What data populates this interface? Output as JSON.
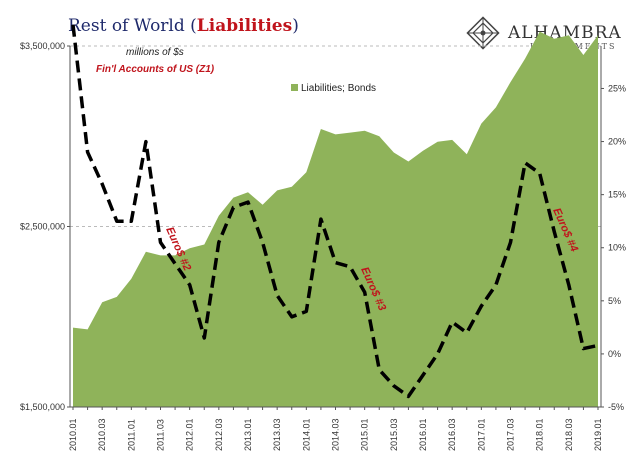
{
  "chart_data": {
    "type": "area",
    "title": {
      "prefix": "Rest of World (",
      "highlight": "Liabilities",
      "suffix": ")"
    },
    "notes": {
      "units": "millions of $s",
      "source": "Fin'l Accounts of US (Z1)"
    },
    "legend": [
      "Liabilities; Bonds"
    ],
    "legend_position": "top-left",
    "x": [
      "2010.Q1",
      "2010.Q2",
      "2010.Q3",
      "2010.Q4",
      "2011.Q1",
      "2011.Q2",
      "2011.Q3",
      "2011.Q4",
      "2012.Q1",
      "2012.Q2",
      "2012.Q3",
      "2012.Q4",
      "2013.Q1",
      "2013.Q2",
      "2013.Q3",
      "2013.Q4",
      "2014.Q1",
      "2014.Q2",
      "2014.Q3",
      "2014.Q4",
      "2015.Q1",
      "2015.Q2",
      "2015.Q3",
      "2015.Q4",
      "2016.Q1",
      "2016.Q2",
      "2016.Q3",
      "2016.Q4",
      "2017.Q1",
      "2017.Q2",
      "2017.Q3",
      "2017.Q4",
      "2018.Q1",
      "2018.Q2",
      "2018.Q3",
      "2018.Q4",
      "2019.Q1"
    ],
    "x_tick_labels": [
      "2010.01",
      "2010.03",
      "2011.01",
      "2011.03",
      "2012.01",
      "2012.03",
      "2013.01",
      "2013.03",
      "2014.01",
      "2014.03",
      "2015.01",
      "2015.03",
      "2016.01",
      "2016.03",
      "2017.01",
      "2017.03",
      "2018.01",
      "2018.03",
      "2019.01"
    ],
    "series": [
      {
        "name": "Liabilities; Bonds",
        "axis": "left",
        "color": "#8fb35a",
        "values": [
          1940000,
          1930000,
          2080000,
          2110000,
          2210000,
          2360000,
          2340000,
          2340000,
          2380000,
          2400000,
          2560000,
          2660000,
          2690000,
          2620000,
          2700000,
          2720000,
          2800000,
          3040000,
          3010000,
          3020000,
          3030000,
          3000000,
          2910000,
          2860000,
          2920000,
          2970000,
          2980000,
          2900000,
          3070000,
          3160000,
          3300000,
          3430000,
          3580000,
          3540000,
          3560000,
          3450000,
          3560000
        ]
      },
      {
        "name": "",
        "axis": "right",
        "color": "#000000",
        "dashed": true,
        "values": [
          31.0,
          19.0,
          16.0,
          12.5,
          12.5,
          20.0,
          10.5,
          8.5,
          6.5,
          1.5,
          10.5,
          13.8,
          14.3,
          10.5,
          5.5,
          3.5,
          4.0,
          12.7,
          8.6,
          8.2,
          5.8,
          -1.5,
          -3.0,
          -4.0,
          -2.0,
          0.0,
          3.0,
          2.0,
          4.5,
          6.5,
          10.5,
          18.0,
          17.0,
          11.5,
          6.5,
          0.5,
          0.8
        ]
      }
    ],
    "y_left": {
      "range": [
        1500000,
        3500000
      ],
      "ticks": [
        1500000,
        2500000,
        3500000
      ],
      "tick_labels": [
        "$1,500,000",
        "$2,500,000",
        "$3,500,000"
      ]
    },
    "y_right": {
      "range": [
        -5,
        29
      ],
      "ticks": [
        -5,
        0,
        5,
        10,
        15,
        20,
        25
      ],
      "tick_labels": [
        "-5%",
        "0%",
        "5%",
        "10%",
        "15%",
        "20%",
        "25%"
      ]
    },
    "annotations": [
      "Euro$ #2",
      "Euro$ #3",
      "Euro$ #4"
    ],
    "grid": "dashed horizontal at $2,500,000 and $3,500,000"
  },
  "logo": {
    "name": "ALHAMBRA",
    "tagline": "INVESTMENTS"
  }
}
